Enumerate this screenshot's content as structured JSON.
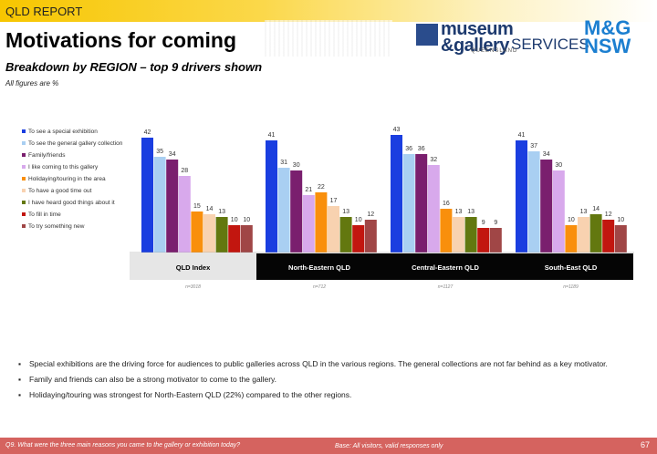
{
  "header": {
    "report_tag": "QLD REPORT",
    "title": "Motivations for coming",
    "subtitle": "Breakdown by REGION – top 9 drivers shown",
    "note": "All figures are %"
  },
  "logos": {
    "mg_line1": "museum",
    "mg_line2": "&gallery",
    "mg_services": "SERVICES",
    "mg_region": "QUEENSLAND",
    "nsw_line1": "M&G",
    "nsw_line2": "NSW"
  },
  "chart_data": {
    "type": "bar",
    "categories": [
      "QLD Index",
      "North-Eastern QLD",
      "Central-Eastern QLD",
      "South-East QLD"
    ],
    "sample_sizes": [
      "n=3018",
      "n=712",
      "n=1127",
      "n=1189"
    ],
    "series": [
      {
        "name": "To see a special exhibition",
        "color": "#1a3ee0",
        "values": [
          42,
          41,
          43,
          41
        ]
      },
      {
        "name": "To see the general gallery collection",
        "color": "#a9cff2",
        "values": [
          35,
          31,
          36,
          37
        ]
      },
      {
        "name": "Family/friends",
        "color": "#7a1f6e",
        "values": [
          34,
          30,
          36,
          34
        ]
      },
      {
        "name": "I like coming to this gallery",
        "color": "#d8a9ec",
        "values": [
          28,
          21,
          32,
          30
        ]
      },
      {
        "name": "Holidaying/touring in the area",
        "color": "#f98f0c",
        "values": [
          15,
          22,
          16,
          10
        ]
      },
      {
        "name": "To have a good time out",
        "color": "#f8d2b0",
        "values": [
          14,
          17,
          13,
          13
        ]
      },
      {
        "name": "I have heard good things about it",
        "color": "#63780f",
        "values": [
          13,
          13,
          13,
          14
        ]
      },
      {
        "name": "To fill in time",
        "color": "#c2160f",
        "values": [
          10,
          10,
          9,
          12
        ]
      },
      {
        "name": "To try something new",
        "color": "#a04646",
        "values": [
          10,
          12,
          9,
          10
        ]
      }
    ],
    "ylim": [
      0,
      45
    ],
    "legend": "left",
    "grid": false
  },
  "bullets": [
    "Special exhibitions are the driving force for audiences to public galleries across QLD in the various regions. The general collections are not far behind as a key motivator.",
    "Family and friends can also be a strong motivator to come to the gallery.",
    "Holidaying/touring was strongest for North-Eastern QLD (22%) compared to the other regions."
  ],
  "footer": {
    "question": "Q9. What were the three main reasons you came to the gallery or exhibition today?",
    "base": "Base: All visitors, valid responses only",
    "page": "67"
  }
}
